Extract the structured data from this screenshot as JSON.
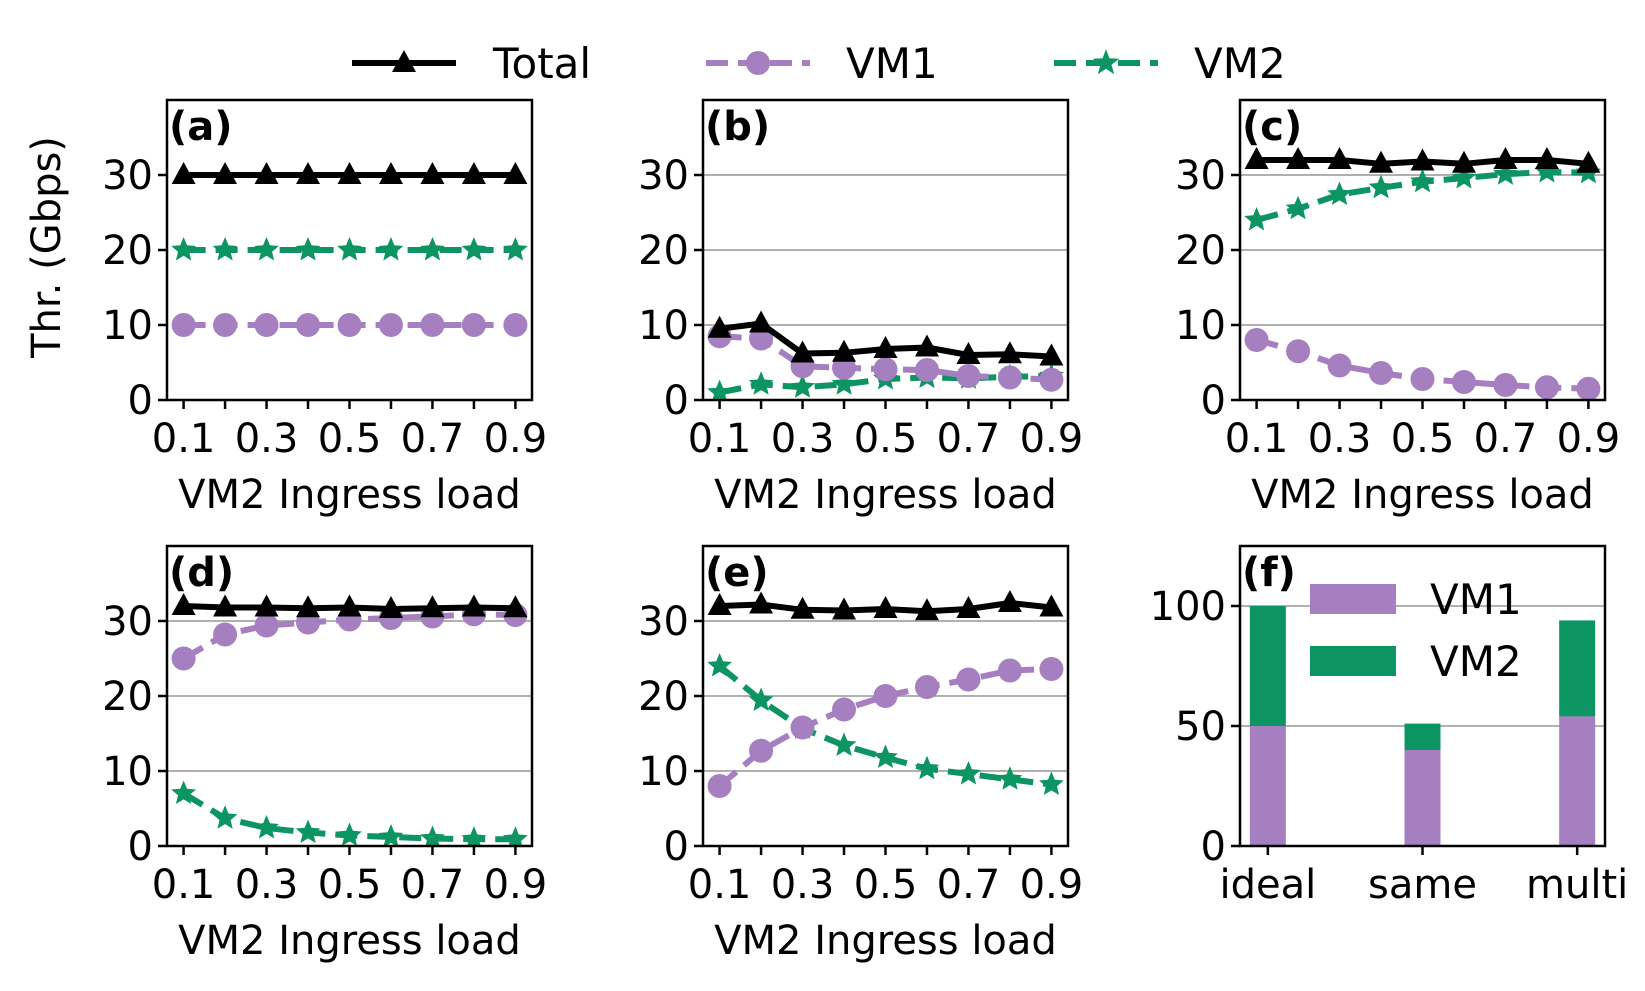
{
  "figure": {
    "ylabel": "Thr. (Gbps)",
    "legend": [
      {
        "label": "Total",
        "color": "#000000",
        "marker": "triangle",
        "dash": "solid"
      },
      {
        "label": "VM1",
        "color": "#a57fbf",
        "marker": "circle",
        "dash": "dashed"
      },
      {
        "label": "VM2",
        "color": "#0c9462",
        "marker": "star",
        "dash": "dashed"
      }
    ]
  },
  "chart_data": [
    {
      "id": "a",
      "panel_label": "(a)",
      "type": "line",
      "xlabel": "VM2 Ingress load",
      "x": [
        0.1,
        0.2,
        0.3,
        0.4,
        0.5,
        0.6,
        0.7,
        0.8,
        0.9
      ],
      "xticks": [
        "0.1",
        "0.3",
        "0.5",
        "0.7",
        "0.9"
      ],
      "xlim": [
        0.06,
        0.94
      ],
      "ylim": [
        0,
        40
      ],
      "yticks": [
        0,
        10,
        20,
        30
      ],
      "grid": false,
      "ytick_labels": true,
      "series": [
        {
          "name": "Total",
          "values": [
            30,
            30,
            30,
            30,
            30,
            30,
            30,
            30,
            30
          ]
        },
        {
          "name": "VM1",
          "values": [
            10,
            10,
            10,
            10,
            10,
            10,
            10,
            10,
            10
          ]
        },
        {
          "name": "VM2",
          "values": [
            20,
            20,
            20,
            20,
            20,
            20,
            20,
            20,
            20
          ]
        }
      ]
    },
    {
      "id": "b",
      "panel_label": "(b)",
      "type": "line",
      "xlabel": "VM2 Ingress load",
      "x": [
        0.1,
        0.2,
        0.3,
        0.4,
        0.5,
        0.6,
        0.7,
        0.8,
        0.9
      ],
      "xticks": [
        "0.1",
        "0.3",
        "0.5",
        "0.7",
        "0.9"
      ],
      "xlim": [
        0.06,
        0.94
      ],
      "ylim": [
        0,
        40
      ],
      "yticks": [
        0,
        10,
        20,
        30
      ],
      "grid": true,
      "ytick_labels": true,
      "series": [
        {
          "name": "Total",
          "values": [
            9.5,
            10.2,
            6.2,
            6.3,
            6.8,
            7.0,
            6.0,
            6.1,
            5.8
          ]
        },
        {
          "name": "VM1",
          "values": [
            8.5,
            8.2,
            4.5,
            4.3,
            4.1,
            4.0,
            3.2,
            3.0,
            2.7
          ]
        },
        {
          "name": "VM2",
          "values": [
            1.0,
            2.1,
            1.7,
            2.1,
            2.8,
            3.0,
            2.9,
            3.1,
            3.2
          ]
        }
      ]
    },
    {
      "id": "c",
      "panel_label": "(c)",
      "type": "line",
      "xlabel": "VM2 Ingress load",
      "x": [
        0.1,
        0.2,
        0.3,
        0.4,
        0.5,
        0.6,
        0.7,
        0.8,
        0.9
      ],
      "xticks": [
        "0.1",
        "0.3",
        "0.5",
        "0.7",
        "0.9"
      ],
      "xlim": [
        0.06,
        0.94
      ],
      "ylim": [
        0,
        40
      ],
      "yticks": [
        0,
        10,
        20,
        30
      ],
      "grid": true,
      "ytick_labels": true,
      "series": [
        {
          "name": "Total",
          "values": [
            32,
            32,
            32,
            31.5,
            31.8,
            31.5,
            32,
            32,
            31.5
          ]
        },
        {
          "name": "VM1",
          "values": [
            8,
            6.5,
            4.6,
            3.6,
            2.8,
            2.4,
            2.0,
            1.7,
            1.5
          ]
        },
        {
          "name": "VM2",
          "values": [
            24,
            25.5,
            27.4,
            28.3,
            29.1,
            29.6,
            30.1,
            30.4,
            30.3
          ]
        }
      ]
    },
    {
      "id": "d",
      "panel_label": "(d)",
      "type": "line",
      "xlabel": "VM2 Ingress load",
      "x": [
        0.1,
        0.2,
        0.3,
        0.4,
        0.5,
        0.6,
        0.7,
        0.8,
        0.9
      ],
      "xticks": [
        "0.1",
        "0.3",
        "0.5",
        "0.7",
        "0.9"
      ],
      "xlim": [
        0.06,
        0.94
      ],
      "ylim": [
        0,
        40
      ],
      "yticks": [
        0,
        10,
        20,
        30
      ],
      "grid": true,
      "ytick_labels": true,
      "series": [
        {
          "name": "Total",
          "values": [
            32,
            31.8,
            31.8,
            31.7,
            31.8,
            31.6,
            31.7,
            31.8,
            31.7
          ]
        },
        {
          "name": "VM1",
          "values": [
            25,
            28.2,
            29.4,
            29.8,
            30.2,
            30.4,
            30.6,
            30.9,
            30.8
          ]
        },
        {
          "name": "VM2",
          "values": [
            7,
            3.7,
            2.4,
            1.8,
            1.4,
            1.2,
            1.0,
            0.9,
            0.9
          ]
        }
      ]
    },
    {
      "id": "e",
      "panel_label": "(e)",
      "type": "line",
      "xlabel": "VM2 Ingress load",
      "x": [
        0.1,
        0.2,
        0.3,
        0.4,
        0.5,
        0.6,
        0.7,
        0.8,
        0.9
      ],
      "xticks": [
        "0.1",
        "0.3",
        "0.5",
        "0.7",
        "0.9"
      ],
      "xlim": [
        0.06,
        0.94
      ],
      "ylim": [
        0,
        40
      ],
      "yticks": [
        0,
        10,
        20,
        30
      ],
      "grid": true,
      "ytick_labels": true,
      "series": [
        {
          "name": "Total",
          "values": [
            32,
            32.2,
            31.5,
            31.4,
            31.6,
            31.3,
            31.6,
            32.4,
            31.8
          ]
        },
        {
          "name": "VM1",
          "values": [
            8,
            12.7,
            15.8,
            18.2,
            20,
            21.2,
            22.2,
            23.4,
            23.6
          ]
        },
        {
          "name": "VM2",
          "values": [
            24,
            19.4,
            15.7,
            13.4,
            11.8,
            10.3,
            9.6,
            8.9,
            8.2
          ]
        }
      ]
    },
    {
      "id": "f",
      "panel_label": "(f)",
      "type": "bar",
      "stacked": true,
      "categories": [
        "ideal",
        "same",
        "multi"
      ],
      "ylim": [
        0,
        125
      ],
      "yticks": [
        0,
        50,
        100
      ],
      "grid": true,
      "series": [
        {
          "name": "VM1",
          "values": [
            50,
            40,
            54
          ]
        },
        {
          "name": "VM2",
          "values": [
            50,
            11,
            40
          ]
        }
      ]
    }
  ]
}
